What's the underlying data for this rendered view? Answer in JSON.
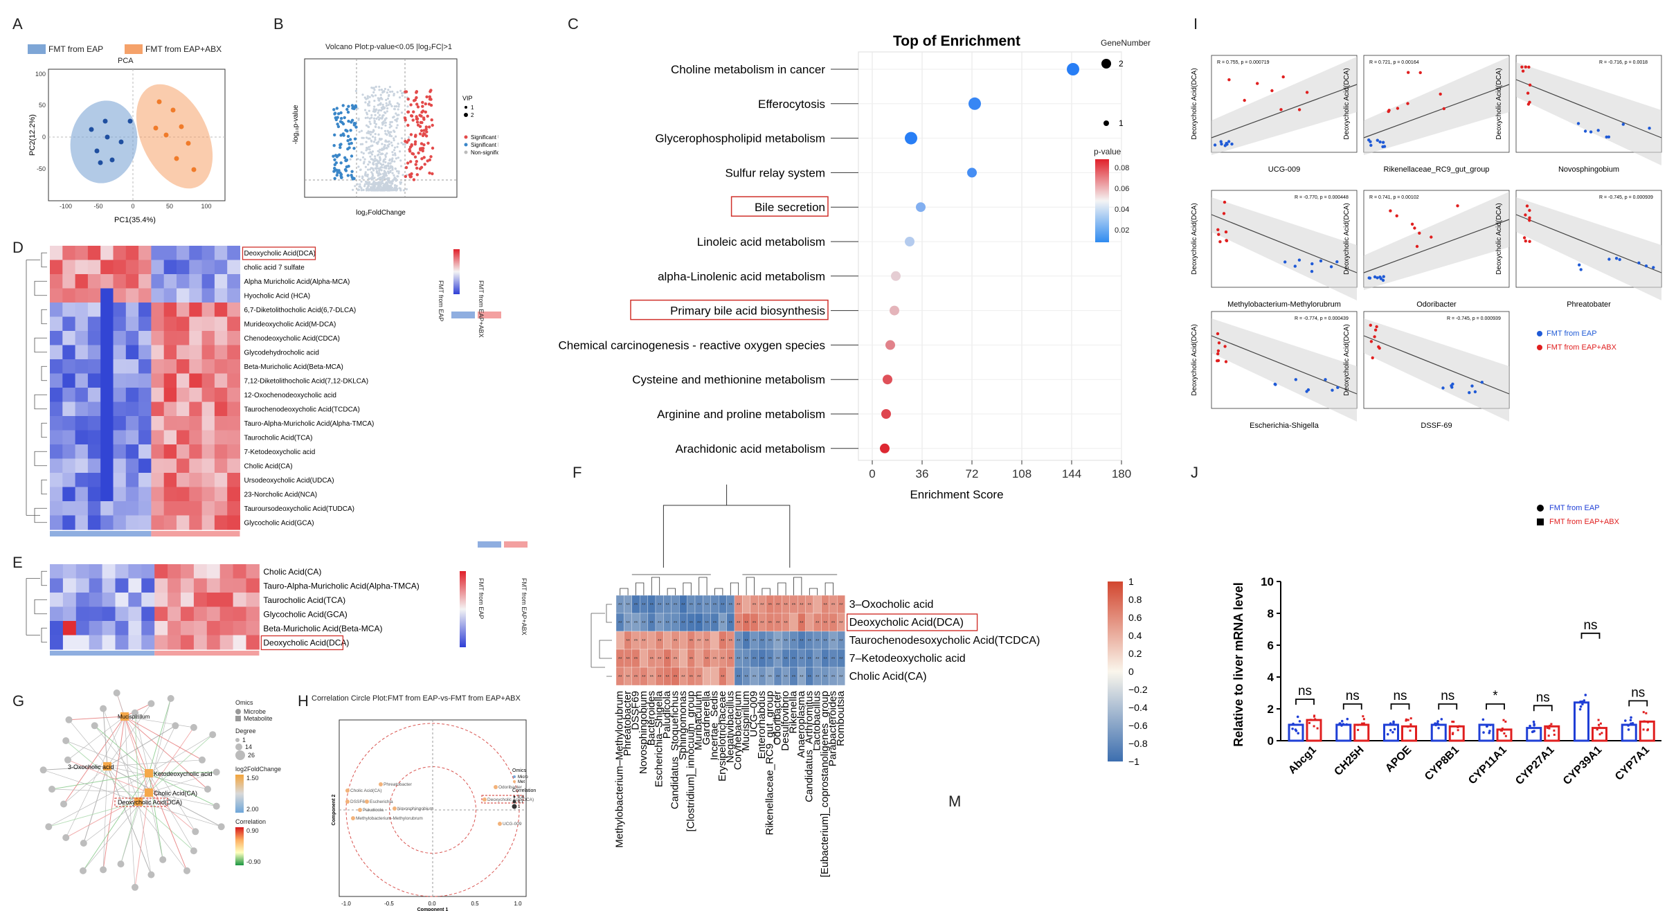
{
  "panels": {
    "A": {
      "letter": "A",
      "legend": [
        "FMT from EAP",
        "FMT from EAP+ABX"
      ],
      "colors": [
        "#7ea6d6",
        "#f5a26a"
      ],
      "title": "PCA",
      "xlabel": "PC1(35.4%)",
      "ylabel": "PC2(12.2%)",
      "xticks": [
        "-100",
        "-50",
        "0",
        "50",
        "100"
      ],
      "yticks": [
        "100",
        "50",
        "0",
        "-50"
      ]
    },
    "B": {
      "letter": "B",
      "title": "Volcano Plot:p-value<0.05  |log₂FC|>1",
      "xlabel": "log₂FoldChange",
      "ylabel": "-log₁₀p-value",
      "vip_title": "VIP",
      "vip": [
        "1",
        "2"
      ],
      "legend": [
        "Significant Up",
        "Significant Down",
        "Non-significant"
      ]
    },
    "C": {
      "letter": "C",
      "title": "Top  of  Enrichment",
      "xlabel": "Enrichment Score",
      "genenumber_title": "GeneNumber",
      "genenumber": [
        "2",
        "1"
      ],
      "pvalue_title": "p-value",
      "pvalue_ticks": [
        "0.08",
        "0.06",
        "0.04",
        "0.02"
      ]
    },
    "D": {
      "letter": "D",
      "metabolites": [
        "Deoxycholic Acid(DCA)",
        "cholic acid 7 sulfate",
        "Alpha Muricholic Acid(Alpha-MCA)",
        "Hyocholic Acid (HCA)",
        "6,7-Diketolithocholic Acid(6,7-DLCA)",
        "Murideoxycholic Acid(M-DCA)",
        "Chenodeoxycholic Acid(CDCA)",
        "Glycodehydrocholic acid",
        "Beta-Muricholic Acid(Beta-MCA)",
        "7,12-Diketolithocholic Acid(7,12-DKLCA)",
        "12-Oxochenodeoxycholic acid",
        "Taurochenodeoxycholic Acid(TCDCA)",
        "Tauro-Alpha-Muricholic Acid(Alpha-TMCA)",
        "Taurocholic Acid(TCA)",
        "7-Ketodeoxycholic acid",
        "Cholic Acid(CA)",
        "Ursodeoxycholic Acid(UDCA)",
        "23-Norcholic Acid(NCA)",
        "Tauroursodeoxycholic Acid(TUDCA)",
        "Glycocholic Acid(GCA)"
      ],
      "groups": [
        "FMT from EAP",
        "FMT from EAP+ABX"
      ]
    },
    "E": {
      "letter": "E",
      "metabolites": [
        "Cholic Acid(CA)",
        "Tauro-Alpha-Muricholic Acid(Alpha-TMCA)",
        "Taurocholic Acid(TCA)",
        "Glycocholic Acid(GCA)",
        "Beta-Muricholic Acid(Beta-MCA)",
        "Deoxycholic Acid(DCA)"
      ],
      "groups": [
        "FMT from EAP",
        "FMT from EAP+ABX"
      ]
    },
    "F": {
      "letter": "F",
      "rows": [
        "3–Oxocholic acid",
        "Deoxycholic Acid(DCA)",
        "Taurochenodesoxycholic Acid(TCDCA)",
        "7–Ketodeoxycholic acid",
        "Cholic Acid(CA)"
      ],
      "cols": [
        "Methylobacterium–Methylorubrum",
        "Phreatobacter",
        "DSSF69",
        "Novosphingobium",
        "Bacteroides",
        "Escherichia–Shigella",
        "Paludicola",
        "Candidatus_Stoquefichus",
        "Sphingomonas",
        "[Clostridium]_innocuum_group",
        "Muribaculum",
        "Gardnerella",
        "Incertae_Sedis",
        "Erysipelotrichaceae",
        "Negativibacillus",
        "Corynebacterium",
        "Mucispirillum",
        "UCG–009",
        "Enterorhabdus",
        "Rikenellaceae_RC9_gut_group",
        "Odoribacter",
        "Desulfovibrio",
        "Rikenella",
        "Anaeroplasma",
        "Candidatus_Arthromitus",
        "Lactobacillus",
        "[Eubacterium]_coprostanoligenes_group",
        "Parabacteroides",
        "Romboutsia"
      ],
      "colorbar": [
        "1",
        "0.8",
        "0.6",
        "0.4",
        "0.2",
        "0",
        "−0.2",
        "−0.4",
        "−0.6",
        "−0.8",
        "−1"
      ]
    },
    "G": {
      "letter": "G",
      "omics_title": "Omics",
      "omics": [
        "Microbe",
        "Metabolite"
      ],
      "degree_title": "Degree",
      "degree": [
        "1",
        "14",
        "26"
      ],
      "fc_title": "log2FoldChange",
      "fc_ticks": [
        "1.50",
        "2.00"
      ],
      "corr_title": "Correlation",
      "corr_ticks": [
        "0.90",
        "-0.90"
      ],
      "nodes": [
        "Mucispirillum",
        "Ketodeoxycholic acid",
        "3-Oxocholic acid",
        "Cholic Acid(CA)",
        "Deoxycholic Acid(DCA)"
      ]
    },
    "H": {
      "letter": "H",
      "title": "Correlation Circle Plot:FMT from EAP-vs-FMT from EAP+ABX",
      "xlabel": "Component 1",
      "ylabel": "Component 2",
      "xticks": [
        "-1.0",
        "-0.5",
        "0.0",
        "0.5",
        "1.0"
      ],
      "labels": [
        "Cholic Acid(CA)",
        "Phreatobacter",
        "DSSF69",
        "Escherichia",
        "Paludicola",
        "Novosphingobium",
        "Methylobacterium-Methylorubrum",
        "Odoribacter",
        "Deoxycholic Acid(DCA)",
        "UCG-009"
      ],
      "omics_title": "Omics",
      "omics": [
        "Micro",
        "Met"
      ],
      "corr_title": "Correlation",
      "corr": [
        "0.4",
        "0.7",
        "1"
      ]
    },
    "I": {
      "letter": "I",
      "ylabel": "Deoxycholic Acid(DCA)",
      "plots": [
        {
          "genus": "UCG-009",
          "stat": "R = 0.755, p = 0.000719"
        },
        {
          "genus": "Rikenellaceae_RC9_gut_group",
          "stat": "R = 0.721, p = 0.00164"
        },
        {
          "genus": "Novosphingobium",
          "stat": "R = -0.716, p = 0.0018"
        },
        {
          "genus": "Methylobacterium-Methylorubrum",
          "stat": "R = -0.770, p = 0.000448"
        },
        {
          "genus": "Odoribacter",
          "stat": "R = 0.741, p = 0.00102"
        },
        {
          "genus": "Phreatobater",
          "stat": "R = -0.745, p = 0.000939"
        },
        {
          "genus": "Escherichia-Shigella",
          "stat": "R = -0.774, p = 0.000439"
        },
        {
          "genus": "DSSF-69",
          "stat": "R = -0.745, p = 0.000939"
        }
      ],
      "legend": [
        "FMT from EAP",
        "FMT from EAP+ABX"
      ]
    },
    "J": {
      "letter": "J",
      "legend": [
        "FMT from EAP",
        "FMT from EAP+ABX"
      ],
      "ylabel": "Relative to liver mRNA level",
      "yticks": [
        "0",
        "2",
        "4",
        "6",
        "8",
        "10"
      ],
      "signif": [
        "ns",
        "ns",
        "ns",
        "ns",
        "*",
        "ns",
        "ns",
        "ns"
      ]
    },
    "M": {
      "letter": "M"
    }
  },
  "chart_data": [
    {
      "type": "scatter",
      "id": "C",
      "title": "Top  of  Enrichment",
      "xlabel": "Enrichment Score",
      "xlim": [
        -10,
        180
      ],
      "xticks": [
        0,
        36,
        72,
        108,
        144,
        180
      ],
      "categories": [
        "Choline metabolism in cancer",
        "Efferocytosis",
        "Glycerophospholipid metabolism",
        "Sulfur relay system",
        "Bile secretion",
        "Linoleic acid metabolism",
        "alpha-Linolenic acid metabolism",
        "Primary bile acid biosynthesis",
        "Chemical carcinogenesis - reactive oxygen species",
        "Cysteine and methionine metabolism",
        "Arginine and proline metabolism",
        "Arachidonic acid metabolism"
      ],
      "highlighted": [
        "Bile secretion",
        "Primary bile acid biosynthesis"
      ],
      "values": [
        145,
        74,
        28,
        72,
        35,
        27,
        17,
        16,
        13,
        11,
        10,
        9
      ],
      "gene_number": [
        2,
        2,
        2,
        1,
        1,
        1,
        1,
        1,
        1,
        1,
        1,
        1
      ],
      "p_value": [
        0.012,
        0.015,
        0.012,
        0.018,
        0.03,
        0.04,
        0.055,
        0.06,
        0.07,
        0.08,
        0.082,
        0.088
      ]
    },
    {
      "type": "bar",
      "id": "J",
      "ylabel": "Relative to liver mRNA level",
      "ylim": [
        0,
        10
      ],
      "categories": [
        "Abcg1",
        "CH25H",
        "APOE",
        "CYP8B1",
        "CYP11A1",
        "CYP27A1",
        "CYP39A1",
        "CYP7A1"
      ],
      "series": [
        {
          "name": "FMT from EAP",
          "values": [
            1.0,
            1.0,
            1.0,
            1.0,
            1.0,
            0.8,
            2.4,
            1.0
          ]
        },
        {
          "name": "FMT from EAP+ABX",
          "values": [
            1.3,
            1.0,
            0.9,
            0.9,
            0.7,
            0.9,
            0.8,
            1.2
          ]
        }
      ]
    }
  ]
}
